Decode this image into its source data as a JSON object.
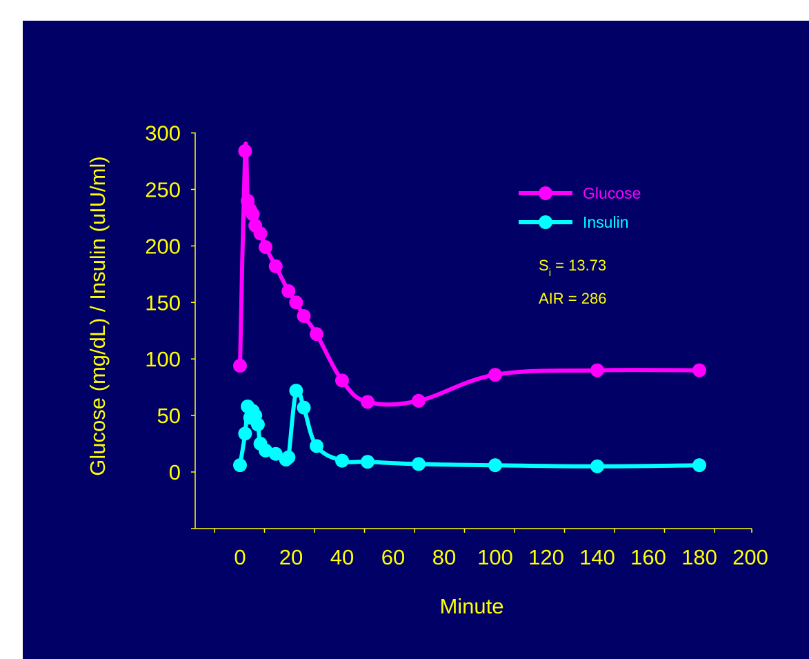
{
  "colors": {
    "slide_background": "#ffffff",
    "plot_background": "#000066",
    "axis_color": "#ffff00",
    "text_color": "#ffff00",
    "glucose_color": "#ff00ff",
    "insulin_color": "#00ffff"
  },
  "chart_data": {
    "type": "line",
    "title": "",
    "xlabel": "Minute",
    "ylabel": "Glucose (mg/dL) / Insulin (uIU/ml)",
    "xlim": [
      -10,
      200
    ],
    "ylim": [
      -45,
      300
    ],
    "x_ticks": [
      0,
      20,
      40,
      60,
      80,
      100,
      120,
      140,
      160,
      180,
      200
    ],
    "x_tick_labels": [
      "0",
      "20",
      "40",
      "60",
      "80",
      "100",
      "120",
      "140",
      "160",
      "180",
      "200"
    ],
    "y_ticks": [
      0,
      50,
      100,
      150,
      200,
      250,
      300
    ],
    "y_tick_labels": [
      "0",
      "50",
      "100",
      "150",
      "200",
      "250",
      "300"
    ],
    "grid": false,
    "legend_position": "top-right",
    "series": [
      {
        "name": "Glucose",
        "color": "#ff00ff",
        "points": [
          [
            0,
            94
          ],
          [
            2,
            284
          ],
          [
            3,
            240
          ],
          [
            4,
            232
          ],
          [
            5,
            228
          ],
          [
            6,
            218
          ],
          [
            8,
            211
          ],
          [
            10,
            199
          ],
          [
            14,
            182
          ],
          [
            19,
            160
          ],
          [
            22,
            150
          ],
          [
            25,
            138
          ],
          [
            30,
            122
          ],
          [
            40,
            81
          ],
          [
            50,
            62
          ],
          [
            70,
            63
          ],
          [
            100,
            86
          ],
          [
            140,
            90
          ],
          [
            180,
            90
          ]
        ]
      },
      {
        "name": "Insulin",
        "color": "#00ffff",
        "points": [
          [
            0,
            6
          ],
          [
            2,
            34
          ],
          [
            3,
            58
          ],
          [
            4,
            48
          ],
          [
            5,
            54
          ],
          [
            6,
            50
          ],
          [
            7,
            42
          ],
          [
            8,
            25
          ],
          [
            10,
            19
          ],
          [
            14,
            16
          ],
          [
            18,
            11
          ],
          [
            19,
            13
          ],
          [
            22,
            72
          ],
          [
            25,
            57
          ],
          [
            30,
            23
          ],
          [
            40,
            10
          ],
          [
            50,
            9
          ],
          [
            70,
            7
          ],
          [
            100,
            6
          ],
          [
            140,
            5
          ],
          [
            180,
            6
          ]
        ]
      }
    ],
    "annotations": {
      "si_main": "S",
      "si_sub": "i",
      "si_rest": " = 13.73",
      "air": "AIR = 286"
    }
  }
}
